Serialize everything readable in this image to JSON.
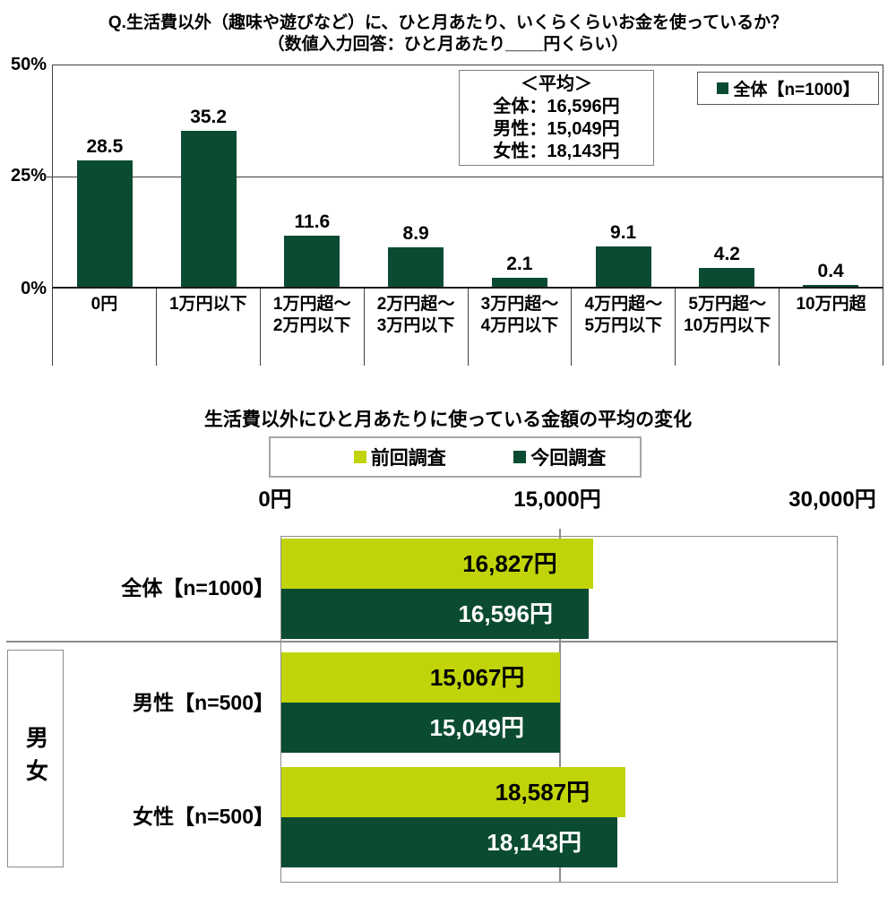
{
  "chart_data": [
    {
      "type": "bar",
      "orientation": "vertical",
      "title": "Q.生活費以外（趣味や遊びなど）に、ひと月あたり、いくらくらいお金を使っているか？",
      "subtitle": "（数値入力回答：ひと月あたり____円くらい）",
      "series_name": "全体【n=1000】",
      "categories": [
        "0円",
        "1万円以下",
        "1万円超～\n2万円以下",
        "2万円超～\n3万円以下",
        "3万円超～\n4万円以下",
        "4万円超～\n5万円以下",
        "5万円超～\n10万円以下",
        "10万円超"
      ],
      "values": [
        28.5,
        35.2,
        11.6,
        8.9,
        2.1,
        9.1,
        4.2,
        0.4
      ],
      "ylim": [
        0,
        50
      ],
      "y_ticks": [
        "50%",
        "25%",
        "0%"
      ],
      "grid": true,
      "bar_color": "#0A4B31",
      "legend_position": "top-right",
      "annotation_box": {
        "heading": "＜平均＞",
        "lines": [
          "全体：16,596円",
          "男性：15,049円",
          "女性：18,143円"
        ]
      }
    },
    {
      "type": "bar",
      "orientation": "horizontal",
      "title": "生活費以外にひと月あたりに使っている金額の平均の変化",
      "categories": [
        "全体【n=1000】",
        "男性【n=500】",
        "女性【n=500】"
      ],
      "group_label": "男女",
      "series": [
        {
          "name": "前回調査",
          "color": "#C1D40A",
          "values": [
            16827,
            15067,
            18587
          ],
          "value_labels": [
            "16,827円",
            "15,067円",
            "18,587円"
          ]
        },
        {
          "name": "今回調査",
          "color": "#0A4B31",
          "values": [
            16596,
            15049,
            18143
          ],
          "value_labels": [
            "16,596円",
            "15,049円",
            "18,143円"
          ]
        }
      ],
      "x_ticks": [
        "0円",
        "15,000円",
        "30,000円"
      ],
      "xlim": [
        0,
        30000
      ],
      "grid": true,
      "legend_position": "top-center"
    }
  ]
}
